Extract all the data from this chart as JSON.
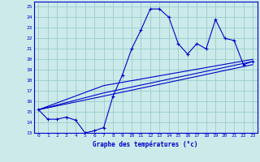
{
  "background_color": "#cceaea",
  "grid_color": "#99cccc",
  "line_color": "#0000cc",
  "xlabel": "Graphe des températures (°c)",
  "xlim": [
    -0.5,
    23.5
  ],
  "ylim": [
    13,
    25.5
  ],
  "yticks": [
    13,
    14,
    15,
    16,
    17,
    18,
    19,
    20,
    21,
    22,
    23,
    24,
    25
  ],
  "xticks": [
    0,
    1,
    2,
    3,
    4,
    5,
    6,
    7,
    8,
    9,
    10,
    11,
    12,
    13,
    14,
    15,
    16,
    17,
    18,
    19,
    20,
    21,
    22,
    23
  ],
  "series_main": {
    "x": [
      0,
      1,
      2,
      3,
      4,
      5,
      6,
      7,
      8,
      9,
      10,
      11,
      12,
      13,
      14,
      15,
      16,
      17,
      18,
      19,
      20,
      21,
      22,
      23
    ],
    "y": [
      15.2,
      14.3,
      14.3,
      14.5,
      14.2,
      13.0,
      13.2,
      13.5,
      16.5,
      18.5,
      21.0,
      22.8,
      24.8,
      24.8,
      24.0,
      21.5,
      20.5,
      21.5,
      21.0,
      23.8,
      22.0,
      21.8,
      19.5,
      19.8
    ]
  },
  "series_trend1": {
    "x": [
      0,
      7,
      23
    ],
    "y": [
      15.2,
      16.5,
      19.5
    ]
  },
  "series_trend2": {
    "x": [
      0,
      7,
      23
    ],
    "y": [
      15.2,
      16.8,
      19.8
    ]
  },
  "series_trend3": {
    "x": [
      0,
      7,
      23
    ],
    "y": [
      15.2,
      17.5,
      20.0
    ]
  }
}
